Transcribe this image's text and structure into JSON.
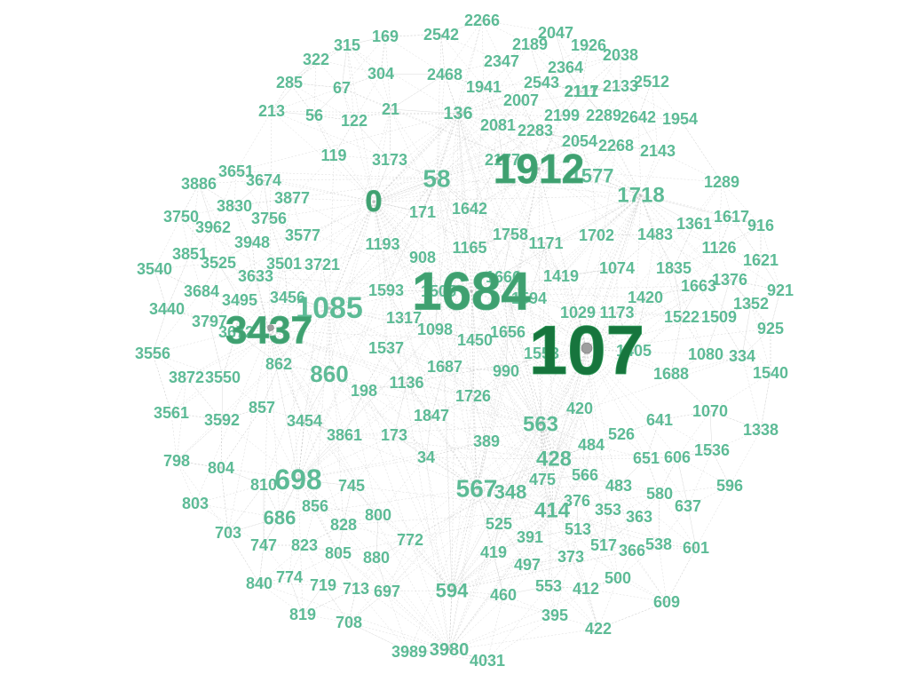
{
  "graph": {
    "label_color": "#5dbb96",
    "hub_color": "#17753d",
    "edge_color": "#b9b9b9",
    "background": "#ffffff",
    "node_labels": [
      "0",
      "107",
      "348",
      "414",
      "686",
      "698",
      "1684",
      "1912",
      "3437",
      "3980",
      "1085",
      "58",
      "136",
      "860",
      "563",
      "428",
      "567",
      "594",
      "1718",
      "1577",
      "21",
      "34",
      "56",
      "67",
      "119",
      "122",
      "169",
      "171",
      "173",
      "198",
      "213",
      "285",
      "304",
      "315",
      "322",
      "334",
      "353",
      "363",
      "366",
      "373",
      "376",
      "389",
      "391",
      "395",
      "412",
      "419",
      "420",
      "422",
      "460",
      "475",
      "483",
      "484",
      "497",
      "500",
      "513",
      "517",
      "525",
      "526",
      "538",
      "553",
      "566",
      "580",
      "596",
      "601",
      "606",
      "609",
      "637",
      "641",
      "651",
      "697",
      "703",
      "708",
      "713",
      "719",
      "745",
      "747",
      "772",
      "774",
      "798",
      "800",
      "803",
      "804",
      "805",
      "810",
      "819",
      "823",
      "828",
      "840",
      "856",
      "857",
      "862",
      "880",
      "908",
      "916",
      "921",
      "925",
      "990",
      "1029",
      "1070",
      "1074",
      "1080",
      "1098",
      "1126",
      "1136",
      "1165",
      "1171",
      "1173",
      "1193",
      "1289",
      "1317",
      "1338",
      "1352",
      "1361",
      "1376",
      "1405",
      "1419",
      "1420",
      "1450",
      "1483",
      "1509",
      "1522",
      "1536",
      "1537",
      "1540",
      "1553",
      "1593",
      "1617",
      "1621",
      "1642",
      "1656",
      "1663",
      "1666",
      "1687",
      "1688",
      "1702",
      "1726",
      "1758",
      "1835",
      "1847",
      "1926",
      "1941",
      "1954",
      "2007",
      "2038",
      "2047",
      "2054",
      "2081",
      "2117",
      "2133",
      "2143",
      "2189",
      "2199",
      "2266",
      "2268",
      "2283",
      "2289",
      "2347",
      "2364",
      "2468",
      "2512",
      "2542",
      "2543",
      "2642",
      "3173",
      "3440",
      "3454",
      "3456",
      "3495",
      "3501",
      "3525",
      "3540",
      "3550",
      "3556",
      "3561",
      "3577",
      "3592",
      "3633",
      "3651",
      "3674",
      "3684",
      "3721",
      "3750",
      "3756",
      "3797",
      "3830",
      "3851",
      "3861",
      "3872",
      "3877",
      "3886",
      "3948",
      "3962",
      "3989",
      "4031",
      "1594",
      "1505",
      "2111",
      "2177",
      "3672"
    ]
  }
}
